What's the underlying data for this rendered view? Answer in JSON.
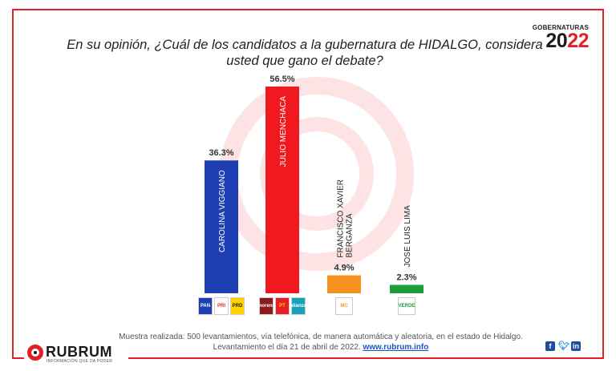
{
  "title": "En su opinión, ¿Cuál de los candidatos a la gubernatura de HIDALGO, considera usted que gano el debate?",
  "badge": {
    "label": "GOBERNATURAS",
    "year_a": "20",
    "year_b": "22"
  },
  "chart_data": {
    "type": "bar",
    "categories": [
      "CAROLINA VIGGIANO",
      "JULIO MENCHACA",
      "FRANCISCO XAVIER BERGANZA",
      "JOSE LUIS LIMA"
    ],
    "values": [
      36.3,
      56.5,
      4.9,
      2.3
    ],
    "value_labels": [
      "36.3%",
      "56.5%",
      "4.9%",
      "2.3%"
    ],
    "colors": [
      "#1e3fb4",
      "#f0191f",
      "#f7901e",
      "#1e9b3a"
    ],
    "label_colors": [
      "#ffffff",
      "#ffffff",
      "#222222",
      "#222222"
    ],
    "ylim": [
      0,
      56.5
    ],
    "grid": false,
    "party_logos": [
      [
        "PAN",
        "PRI",
        "PRD"
      ],
      [
        "morena",
        "PT",
        "alianza"
      ],
      [
        "MC"
      ],
      [
        "VERDE"
      ]
    ]
  },
  "footer": {
    "line1": "Muestra realizada: 500 levantamientos, vía telefónica, de manera automática y aleatoria, en el estado de Hidalgo.",
    "line2": "Levantamiento el día 21 de abril de 2022.",
    "link": "www.rubrum.info"
  },
  "brand": {
    "name": "RUBRUM",
    "tagline": "INFORMACIÓN QUE DA PODER"
  },
  "social": [
    "f",
    "t",
    "in"
  ]
}
